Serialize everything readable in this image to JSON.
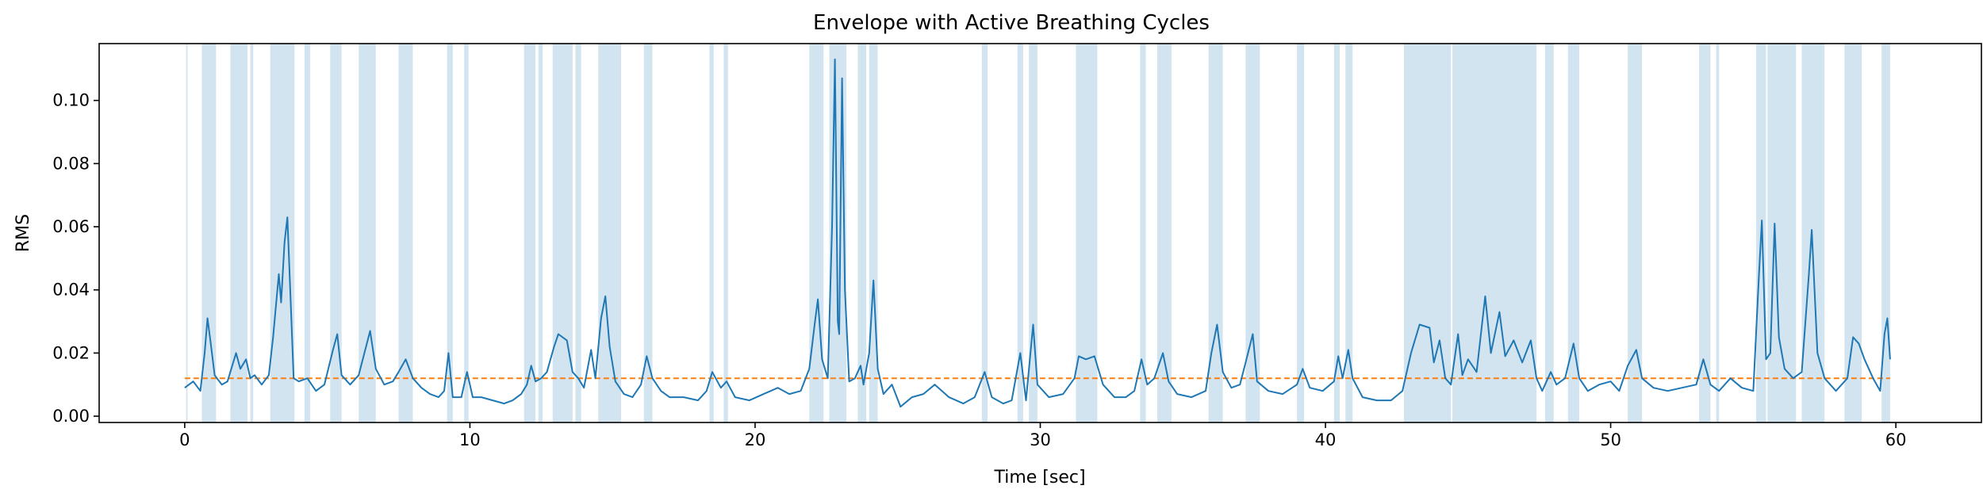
{
  "chart_data": {
    "type": "line",
    "title": "Envelope with Active Breathing Cycles",
    "xlabel": "Time [sec]",
    "ylabel": "RMS",
    "xlim": [
      -3.0,
      63.0
    ],
    "ylim": [
      -0.002,
      0.118
    ],
    "x_ticks": [
      0,
      10,
      20,
      30,
      40,
      50,
      60
    ],
    "x_tick_labels": [
      "0",
      "10",
      "20",
      "30",
      "40",
      "50",
      "60"
    ],
    "y_ticks": [
      0.0,
      0.02,
      0.04,
      0.06,
      0.08,
      0.1
    ],
    "y_tick_labels": [
      "0.00",
      "0.02",
      "0.04",
      "0.06",
      "0.08",
      "0.10"
    ],
    "grid": false,
    "legend": "none",
    "colors": {
      "envelope": "#1f77b4",
      "threshold": "#ff7f0e",
      "active_span": "#1f77b4"
    },
    "active_span_opacity": 0.2,
    "threshold": {
      "value": 0.012,
      "style": "dashed",
      "x_range": [
        0,
        59.8
      ]
    },
    "active_spans": [
      [
        0.05,
        0.1
      ],
      [
        0.6,
        1.1
      ],
      [
        1.6,
        2.2
      ],
      [
        2.3,
        2.4
      ],
      [
        3.0,
        3.85
      ],
      [
        4.2,
        4.4
      ],
      [
        5.1,
        5.5
      ],
      [
        6.1,
        6.7
      ],
      [
        7.5,
        8.0
      ],
      [
        9.2,
        9.4
      ],
      [
        9.8,
        9.95
      ],
      [
        11.9,
        12.3
      ],
      [
        12.4,
        12.55
      ],
      [
        12.9,
        13.6
      ],
      [
        13.7,
        13.9
      ],
      [
        14.5,
        15.3
      ],
      [
        16.1,
        16.4
      ],
      [
        18.4,
        18.55
      ],
      [
        18.9,
        19.05
      ],
      [
        21.9,
        22.4
      ],
      [
        22.6,
        23.2
      ],
      [
        23.6,
        23.9
      ],
      [
        24.0,
        24.3
      ],
      [
        27.95,
        28.15
      ],
      [
        29.2,
        29.4
      ],
      [
        29.6,
        29.9
      ],
      [
        31.25,
        32.0
      ],
      [
        33.5,
        33.7
      ],
      [
        34.1,
        34.6
      ],
      [
        35.9,
        36.4
      ],
      [
        37.2,
        37.7
      ],
      [
        39.0,
        39.25
      ],
      [
        40.3,
        40.5
      ],
      [
        40.7,
        40.95
      ],
      [
        42.75,
        44.4
      ],
      [
        44.45,
        47.4
      ],
      [
        47.7,
        48.0
      ],
      [
        48.5,
        48.9
      ],
      [
        50.6,
        51.1
      ],
      [
        53.1,
        53.5
      ],
      [
        53.7,
        53.8
      ],
      [
        55.1,
        55.45
      ],
      [
        55.5,
        56.5
      ],
      [
        56.7,
        57.5
      ],
      [
        58.2,
        58.8
      ],
      [
        59.5,
        59.8
      ]
    ],
    "series": [
      {
        "values": [
          [
            0.0,
            0.009
          ],
          [
            0.3,
            0.011
          ],
          [
            0.55,
            0.008
          ],
          [
            0.7,
            0.02
          ],
          [
            0.8,
            0.031
          ],
          [
            0.9,
            0.024
          ],
          [
            1.05,
            0.013
          ],
          [
            1.3,
            0.01
          ],
          [
            1.5,
            0.011
          ],
          [
            1.7,
            0.017
          ],
          [
            1.8,
            0.02
          ],
          [
            1.95,
            0.015
          ],
          [
            2.15,
            0.018
          ],
          [
            2.3,
            0.012
          ],
          [
            2.45,
            0.013
          ],
          [
            2.7,
            0.01
          ],
          [
            2.95,
            0.013
          ],
          [
            3.1,
            0.025
          ],
          [
            3.3,
            0.045
          ],
          [
            3.38,
            0.036
          ],
          [
            3.5,
            0.055
          ],
          [
            3.6,
            0.063
          ],
          [
            3.7,
            0.04
          ],
          [
            3.82,
            0.012
          ],
          [
            4.0,
            0.011
          ],
          [
            4.3,
            0.012
          ],
          [
            4.6,
            0.008
          ],
          [
            4.9,
            0.01
          ],
          [
            5.2,
            0.021
          ],
          [
            5.35,
            0.026
          ],
          [
            5.5,
            0.013
          ],
          [
            5.8,
            0.01
          ],
          [
            6.1,
            0.013
          ],
          [
            6.3,
            0.02
          ],
          [
            6.5,
            0.027
          ],
          [
            6.7,
            0.015
          ],
          [
            7.0,
            0.01
          ],
          [
            7.3,
            0.011
          ],
          [
            7.5,
            0.014
          ],
          [
            7.75,
            0.018
          ],
          [
            8.0,
            0.012
          ],
          [
            8.3,
            0.009
          ],
          [
            8.6,
            0.007
          ],
          [
            8.9,
            0.006
          ],
          [
            9.1,
            0.008
          ],
          [
            9.25,
            0.02
          ],
          [
            9.4,
            0.006
          ],
          [
            9.7,
            0.006
          ],
          [
            9.9,
            0.014
          ],
          [
            10.1,
            0.006
          ],
          [
            10.4,
            0.006
          ],
          [
            10.8,
            0.005
          ],
          [
            11.2,
            0.004
          ],
          [
            11.5,
            0.005
          ],
          [
            11.8,
            0.007
          ],
          [
            12.0,
            0.01
          ],
          [
            12.15,
            0.016
          ],
          [
            12.3,
            0.011
          ],
          [
            12.5,
            0.012
          ],
          [
            12.7,
            0.014
          ],
          [
            12.95,
            0.022
          ],
          [
            13.1,
            0.026
          ],
          [
            13.4,
            0.024
          ],
          [
            13.6,
            0.014
          ],
          [
            13.8,
            0.012
          ],
          [
            14.0,
            0.009
          ],
          [
            14.25,
            0.021
          ],
          [
            14.4,
            0.012
          ],
          [
            14.6,
            0.031
          ],
          [
            14.75,
            0.038
          ],
          [
            14.9,
            0.022
          ],
          [
            15.1,
            0.011
          ],
          [
            15.4,
            0.007
          ],
          [
            15.7,
            0.006
          ],
          [
            16.0,
            0.01
          ],
          [
            16.2,
            0.019
          ],
          [
            16.4,
            0.012
          ],
          [
            16.7,
            0.008
          ],
          [
            17.0,
            0.006
          ],
          [
            17.5,
            0.006
          ],
          [
            18.0,
            0.005
          ],
          [
            18.3,
            0.008
          ],
          [
            18.5,
            0.014
          ],
          [
            18.8,
            0.009
          ],
          [
            19.0,
            0.011
          ],
          [
            19.3,
            0.006
          ],
          [
            19.8,
            0.005
          ],
          [
            20.3,
            0.007
          ],
          [
            20.8,
            0.009
          ],
          [
            21.2,
            0.007
          ],
          [
            21.6,
            0.008
          ],
          [
            21.9,
            0.015
          ],
          [
            22.1,
            0.03
          ],
          [
            22.2,
            0.037
          ],
          [
            22.35,
            0.018
          ],
          [
            22.55,
            0.012
          ],
          [
            22.7,
            0.06
          ],
          [
            22.8,
            0.113
          ],
          [
            22.9,
            0.03
          ],
          [
            22.95,
            0.026
          ],
          [
            23.05,
            0.107
          ],
          [
            23.15,
            0.04
          ],
          [
            23.3,
            0.011
          ],
          [
            23.5,
            0.012
          ],
          [
            23.7,
            0.016
          ],
          [
            23.8,
            0.01
          ],
          [
            24.0,
            0.02
          ],
          [
            24.15,
            0.043
          ],
          [
            24.3,
            0.015
          ],
          [
            24.5,
            0.007
          ],
          [
            24.8,
            0.01
          ],
          [
            25.1,
            0.003
          ],
          [
            25.5,
            0.006
          ],
          [
            25.9,
            0.007
          ],
          [
            26.3,
            0.01
          ],
          [
            26.8,
            0.006
          ],
          [
            27.3,
            0.004
          ],
          [
            27.7,
            0.006
          ],
          [
            28.05,
            0.014
          ],
          [
            28.3,
            0.006
          ],
          [
            28.7,
            0.004
          ],
          [
            29.0,
            0.005
          ],
          [
            29.3,
            0.02
          ],
          [
            29.5,
            0.005
          ],
          [
            29.75,
            0.029
          ],
          [
            29.9,
            0.01
          ],
          [
            30.3,
            0.006
          ],
          [
            30.8,
            0.007
          ],
          [
            31.2,
            0.012
          ],
          [
            31.35,
            0.019
          ],
          [
            31.6,
            0.018
          ],
          [
            31.9,
            0.019
          ],
          [
            32.2,
            0.01
          ],
          [
            32.6,
            0.006
          ],
          [
            33.0,
            0.006
          ],
          [
            33.3,
            0.008
          ],
          [
            33.55,
            0.018
          ],
          [
            33.75,
            0.01
          ],
          [
            34.0,
            0.012
          ],
          [
            34.3,
            0.02
          ],
          [
            34.5,
            0.011
          ],
          [
            34.8,
            0.007
          ],
          [
            35.3,
            0.006
          ],
          [
            35.8,
            0.008
          ],
          [
            36.0,
            0.02
          ],
          [
            36.2,
            0.029
          ],
          [
            36.4,
            0.014
          ],
          [
            36.7,
            0.009
          ],
          [
            37.0,
            0.01
          ],
          [
            37.2,
            0.017
          ],
          [
            37.45,
            0.026
          ],
          [
            37.6,
            0.011
          ],
          [
            38.0,
            0.008
          ],
          [
            38.5,
            0.007
          ],
          [
            39.0,
            0.01
          ],
          [
            39.2,
            0.015
          ],
          [
            39.45,
            0.009
          ],
          [
            39.9,
            0.008
          ],
          [
            40.3,
            0.011
          ],
          [
            40.45,
            0.019
          ],
          [
            40.6,
            0.012
          ],
          [
            40.8,
            0.021
          ],
          [
            40.95,
            0.012
          ],
          [
            41.3,
            0.006
          ],
          [
            41.8,
            0.005
          ],
          [
            42.3,
            0.005
          ],
          [
            42.7,
            0.008
          ],
          [
            43.0,
            0.02
          ],
          [
            43.3,
            0.029
          ],
          [
            43.65,
            0.028
          ],
          [
            43.8,
            0.017
          ],
          [
            44.0,
            0.024
          ],
          [
            44.2,
            0.012
          ],
          [
            44.4,
            0.01
          ],
          [
            44.65,
            0.026
          ],
          [
            44.8,
            0.013
          ],
          [
            45.0,
            0.018
          ],
          [
            45.3,
            0.014
          ],
          [
            45.6,
            0.038
          ],
          [
            45.8,
            0.02
          ],
          [
            46.1,
            0.033
          ],
          [
            46.3,
            0.019
          ],
          [
            46.6,
            0.024
          ],
          [
            46.9,
            0.017
          ],
          [
            47.2,
            0.024
          ],
          [
            47.4,
            0.012
          ],
          [
            47.6,
            0.008
          ],
          [
            47.9,
            0.014
          ],
          [
            48.1,
            0.01
          ],
          [
            48.4,
            0.012
          ],
          [
            48.7,
            0.023
          ],
          [
            48.9,
            0.012
          ],
          [
            49.2,
            0.008
          ],
          [
            49.6,
            0.01
          ],
          [
            50.0,
            0.011
          ],
          [
            50.3,
            0.008
          ],
          [
            50.6,
            0.016
          ],
          [
            50.9,
            0.021
          ],
          [
            51.1,
            0.012
          ],
          [
            51.5,
            0.009
          ],
          [
            52.0,
            0.008
          ],
          [
            52.5,
            0.009
          ],
          [
            53.0,
            0.01
          ],
          [
            53.25,
            0.018
          ],
          [
            53.5,
            0.01
          ],
          [
            53.8,
            0.008
          ],
          [
            54.2,
            0.012
          ],
          [
            54.6,
            0.009
          ],
          [
            55.0,
            0.008
          ],
          [
            55.2,
            0.045
          ],
          [
            55.3,
            0.062
          ],
          [
            55.45,
            0.018
          ],
          [
            55.6,
            0.02
          ],
          [
            55.75,
            0.061
          ],
          [
            55.9,
            0.025
          ],
          [
            56.1,
            0.015
          ],
          [
            56.4,
            0.012
          ],
          [
            56.7,
            0.014
          ],
          [
            56.95,
            0.045
          ],
          [
            57.05,
            0.059
          ],
          [
            57.25,
            0.02
          ],
          [
            57.5,
            0.012
          ],
          [
            57.9,
            0.008
          ],
          [
            58.3,
            0.012
          ],
          [
            58.5,
            0.025
          ],
          [
            58.7,
            0.023
          ],
          [
            58.9,
            0.018
          ],
          [
            59.2,
            0.012
          ],
          [
            59.45,
            0.008
          ],
          [
            59.6,
            0.026
          ],
          [
            59.7,
            0.031
          ],
          [
            59.8,
            0.018
          ]
        ]
      }
    ]
  }
}
